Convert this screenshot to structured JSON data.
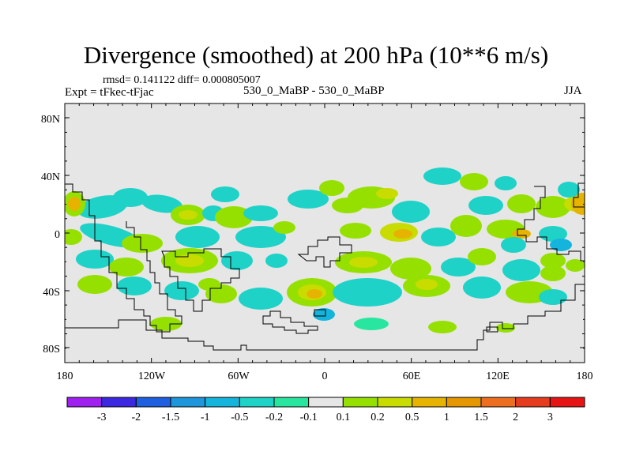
{
  "title": "Divergence (smoothed) at 200 hPa (10**6 m/s)",
  "stats": "rmsd= 0.141122 diff= 0.000805007",
  "experiment": "Expt = tFkec-tFjac",
  "subtitle": "530_0_MaBP - 530_0_MaBP",
  "season": "JJA",
  "map": {
    "lat_ticks": [
      "80N",
      "40N",
      "0",
      "40S",
      "80S"
    ],
    "lon_ticks": [
      "180",
      "120W",
      "60W",
      "0",
      "60E",
      "120E",
      "180"
    ],
    "background_color": "#e6e6e6"
  },
  "colorbar": {
    "labels": [
      "-3",
      "-2",
      "-1.5",
      "-1",
      "-0.5",
      "-0.2",
      "-0.1",
      "0.1",
      "0.2",
      "0.5",
      "1",
      "1.5",
      "2",
      "3"
    ],
    "colors": [
      "#a020f0",
      "#3c28e0",
      "#1e60e0",
      "#1e96dc",
      "#14b4dc",
      "#1ed2c8",
      "#28e6a0",
      "#e6e6e6",
      "#96e000",
      "#c8dc00",
      "#e6b400",
      "#e69600",
      "#ec6e1e",
      "#e63c1e",
      "#e61414"
    ]
  },
  "field_colors": {
    "neg_weak": "#28e6a0",
    "neg_mid": "#1ed2c8",
    "neg_strong": "#14b4dc",
    "pos_weak": "#96e000",
    "pos_mid": "#c8dc00",
    "pos_strong": "#e6b400",
    "pos_peak": "#e69600"
  }
}
